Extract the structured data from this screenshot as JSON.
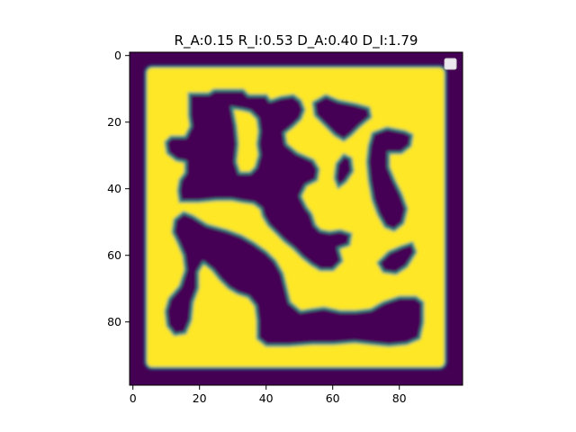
{
  "chart_data": {
    "type": "heatmap",
    "title": "R_A:0.15 R_I:0.53 D_A:0.40 D_I:1.79",
    "xlabel": "",
    "ylabel": "",
    "xlim": [
      -0.5,
      99.5
    ],
    "ylim": [
      99.5,
      -0.5
    ],
    "x_ticks": [
      0,
      20,
      40,
      60,
      80
    ],
    "y_ticks": [
      0,
      20,
      40,
      60,
      80
    ],
    "x_tick_labels": [
      "0",
      "20",
      "40",
      "60",
      "80"
    ],
    "y_tick_labels": [
      "0",
      "20",
      "40",
      "60",
      "80"
    ],
    "colormap": "viridis",
    "colors": {
      "low": "#440154",
      "mid": "#21918c",
      "high": "#fde725"
    },
    "value_range": [
      0,
      1
    ],
    "grid": false,
    "legend": "top-right (empty)",
    "description_regions": {
      "background_value": 0,
      "frame_value": 1,
      "frame_extent": {
        "x": [
          5,
          94
        ],
        "y": [
          4,
          95
        ]
      },
      "inner_dark_blobs_value": 0
    }
  }
}
